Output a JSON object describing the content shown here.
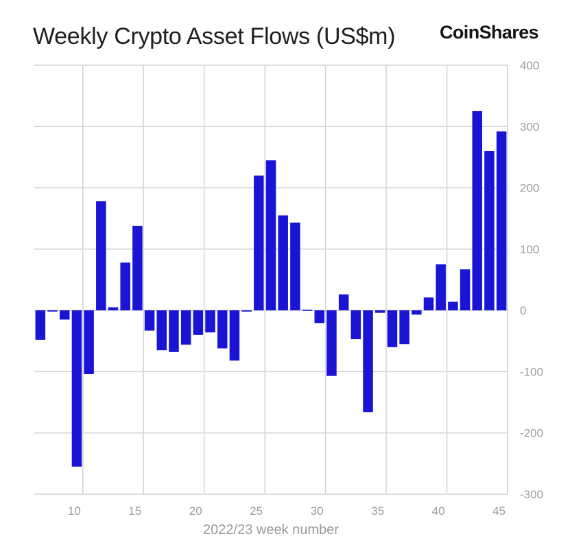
{
  "header": {
    "title": "Weekly Crypto Asset Flows (US$m)",
    "brand": "CoinShares"
  },
  "colors": {
    "bar": "#1a14d4",
    "grid": "#d4d4d4",
    "axis_text": "#9a9a9a"
  },
  "chart_data": {
    "type": "bar",
    "title": "Weekly Crypto Asset Flows (US$m)",
    "xlabel": "2022/23 week number",
    "ylabel": "",
    "x": [
      7,
      8,
      9,
      10,
      11,
      12,
      13,
      14,
      15,
      16,
      17,
      18,
      19,
      20,
      21,
      22,
      23,
      24,
      25,
      26,
      27,
      28,
      29,
      30,
      31,
      32,
      33,
      34,
      35,
      36,
      37,
      38,
      39,
      40,
      41,
      42,
      43,
      44,
      45
    ],
    "values": [
      -48,
      -2,
      -15,
      -255,
      -104,
      178,
      5,
      78,
      138,
      -33,
      -65,
      -68,
      -56,
      -40,
      -36,
      -62,
      -82,
      -2,
      220,
      245,
      155,
      143,
      1,
      -21,
      -107,
      26,
      -47,
      -166,
      -4,
      -60,
      -55,
      -7,
      21,
      75,
      14,
      67,
      325,
      260,
      292
    ],
    "xticks": [
      10,
      15,
      20,
      25,
      30,
      35,
      40,
      45
    ],
    "yticks": [
      -300,
      -200,
      -100,
      0,
      100,
      200,
      300,
      400
    ],
    "ylim": [
      -300,
      400
    ],
    "xlim": [
      6.5,
      45.5
    ],
    "y_axis_side": "right",
    "grid": true
  }
}
